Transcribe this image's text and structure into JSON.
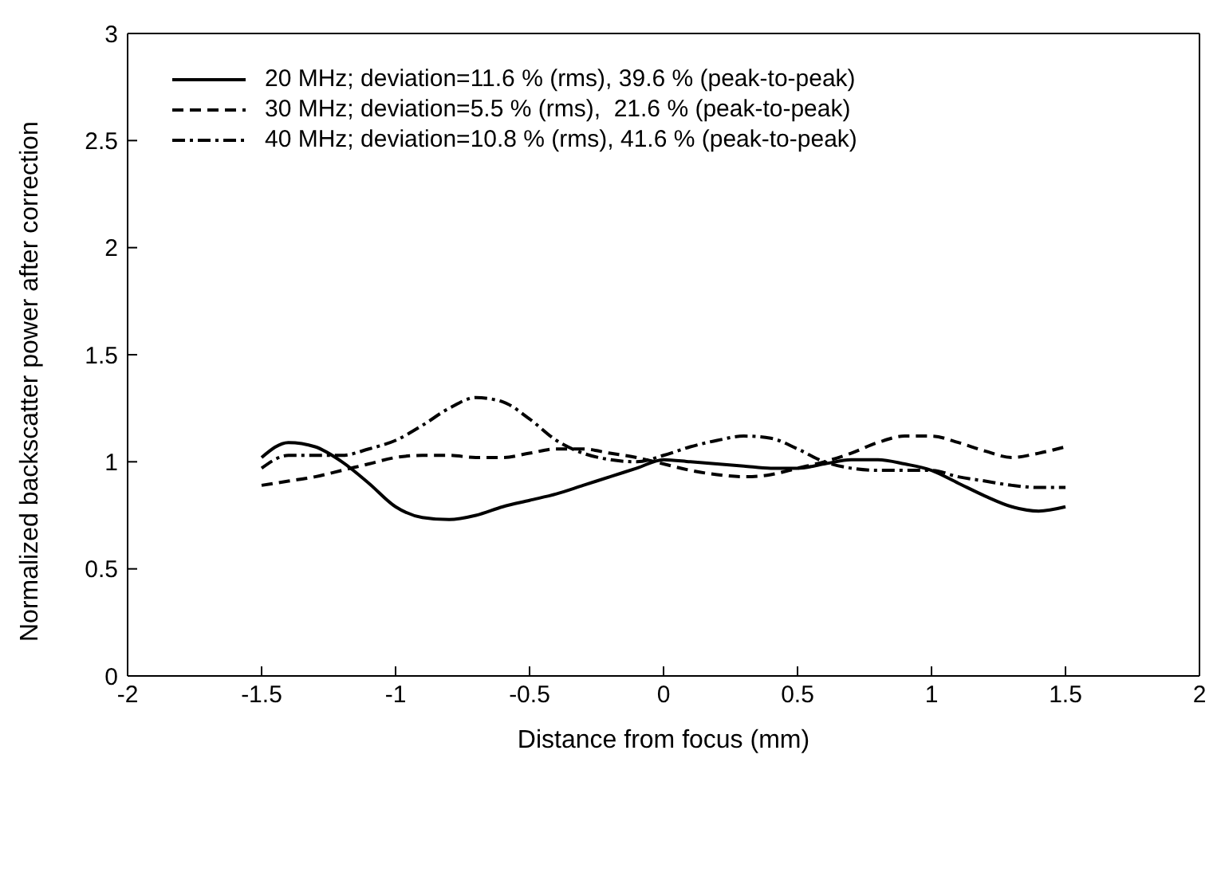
{
  "chart_data": {
    "type": "line",
    "xlabel": "Distance from focus (mm)",
    "ylabel": "Normalized backscatter power after correction",
    "x": [
      -1.5,
      -1.4,
      -1.3,
      -1.2,
      -1.1,
      -1.0,
      -0.9,
      -0.8,
      -0.7,
      -0.6,
      -0.5,
      -0.4,
      -0.3,
      -0.2,
      -0.1,
      0,
      0.1,
      0.2,
      0.3,
      0.4,
      0.5,
      0.6,
      0.7,
      0.8,
      0.9,
      1.0,
      1.1,
      1.2,
      1.3,
      1.4,
      1.5
    ],
    "series": [
      {
        "name": "20 MHz; deviation=11.6 % (rms), 39.6 % (peak-to-peak)",
        "color": "#000000",
        "line_style": "solid",
        "values": [
          1.02,
          1.09,
          1.07,
          1.0,
          0.9,
          0.79,
          0.74,
          0.73,
          0.75,
          0.79,
          0.82,
          0.85,
          0.89,
          0.93,
          0.97,
          1.01,
          1.0,
          0.99,
          0.98,
          0.97,
          0.97,
          0.99,
          1.01,
          1.01,
          0.99,
          0.96,
          0.9,
          0.84,
          0.79,
          0.77,
          0.79
        ]
      },
      {
        "name": "30 MHz; deviation=5.5 % (rms),  21.6 % (peak-to-peak)",
        "color": "#000000",
        "line_style": "dashed",
        "values": [
          0.89,
          0.91,
          0.93,
          0.96,
          0.99,
          1.02,
          1.03,
          1.03,
          1.02,
          1.02,
          1.04,
          1.06,
          1.06,
          1.04,
          1.02,
          0.99,
          0.96,
          0.94,
          0.93,
          0.94,
          0.97,
          1.0,
          1.04,
          1.09,
          1.12,
          1.12,
          1.09,
          1.05,
          1.02,
          1.04,
          1.07
        ]
      },
      {
        "name": "40 MHz; deviation=10.8 % (rms), 41.6 % (peak-to-peak)",
        "color": "#000000",
        "line_style": "dashdot",
        "values": [
          0.97,
          1.03,
          1.03,
          1.03,
          1.06,
          1.1,
          1.17,
          1.25,
          1.3,
          1.28,
          1.2,
          1.1,
          1.04,
          1.01,
          1.0,
          1.03,
          1.07,
          1.1,
          1.12,
          1.11,
          1.06,
          1.0,
          0.97,
          0.96,
          0.96,
          0.96,
          0.93,
          0.91,
          0.89,
          0.88,
          0.88
        ]
      }
    ],
    "xlim": [
      -2,
      2
    ],
    "xticks": [
      -2,
      -1.5,
      -1,
      -0.5,
      0,
      0.5,
      1,
      1.5,
      2
    ],
    "ylim": [
      0,
      3
    ],
    "yticks": [
      0,
      0.5,
      1,
      1.5,
      2,
      2.5,
      3
    ],
    "grid": false,
    "legend": "top left",
    "marker": "none"
  }
}
